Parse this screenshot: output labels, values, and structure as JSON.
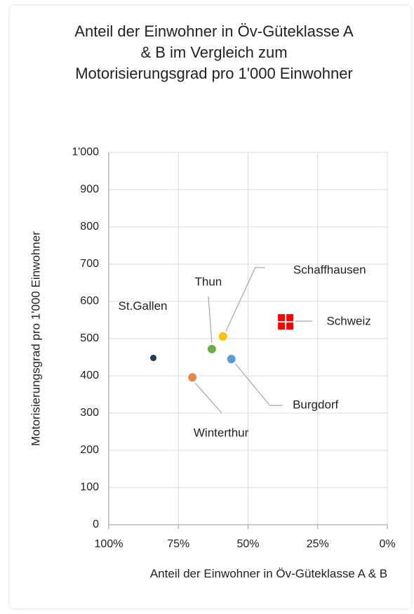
{
  "chart_data": {
    "type": "scatter",
    "title": "Anteil der Einwohner in Öv-Güteklasse A & B im Vergleich zum Motorisierungsgrad pro 1'000 Einwohner",
    "xlabel": "Anteil der Einwohner in Öv-Güteklasse A & B",
    "ylabel": "Motorisierungsgrad pro 1'000 Einwohner",
    "xlim": [
      100,
      0
    ],
    "xticks": [
      {
        "value": 100,
        "label": "100%"
      },
      {
        "value": 75,
        "label": "75%"
      },
      {
        "value": 50,
        "label": "50%"
      },
      {
        "value": 25,
        "label": "25%"
      },
      {
        "value": 0,
        "label": "0%"
      }
    ],
    "ylim": [
      0,
      1000
    ],
    "yticks": [
      0,
      100,
      200,
      300,
      400,
      500,
      600,
      700,
      800,
      900,
      {
        "value": 1000,
        "label": "1'000"
      }
    ],
    "grid": true,
    "series": [
      {
        "name": "St.Gallen",
        "color": "#1f3b5c",
        "marker": "circle",
        "x": [
          84
        ],
        "values": [
          448
        ]
      },
      {
        "name": "Winterthur",
        "color": "#e8884a",
        "marker": "circle",
        "x": [
          70
        ],
        "values": [
          396
        ]
      },
      {
        "name": "Thun",
        "color": "#70ad47",
        "marker": "circle",
        "x": [
          63
        ],
        "values": [
          472
        ]
      },
      {
        "name": "Schaffhausen",
        "color": "#ffc000",
        "marker": "circle",
        "x": [
          59
        ],
        "values": [
          506
        ]
      },
      {
        "name": "Burgdorf",
        "color": "#5b9bd5",
        "marker": "circle",
        "x": [
          56
        ],
        "values": [
          445
        ]
      },
      {
        "name": "Schweiz",
        "color": "#ff0000",
        "marker": "square",
        "x": [
          36.5
        ],
        "values": [
          545
        ]
      }
    ]
  }
}
